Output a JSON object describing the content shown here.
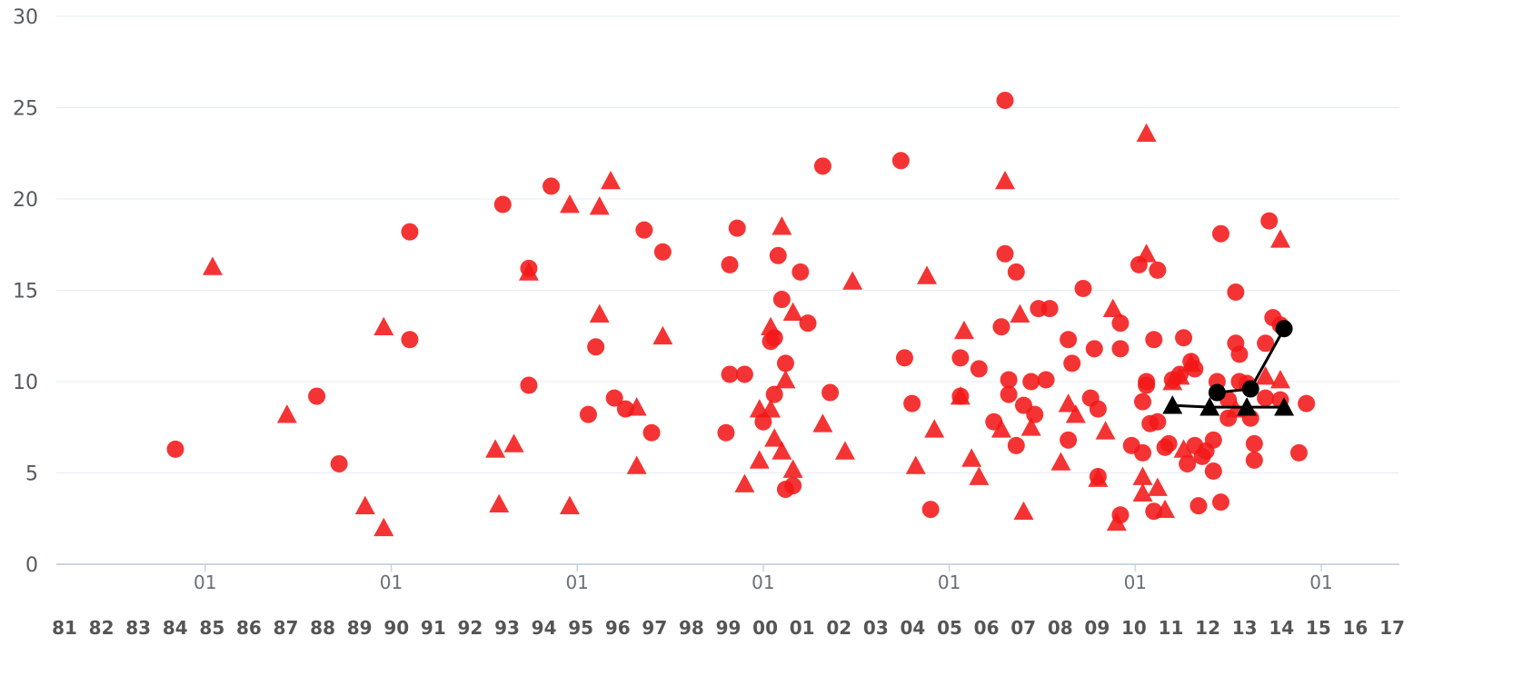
{
  "chart_data": {
    "type": "scatter",
    "ylim": [
      0,
      30
    ],
    "y_ticks": [
      "0",
      "5",
      "10",
      "15",
      "20",
      "25",
      "30"
    ],
    "xlim": [
      1981,
      2017.1
    ],
    "x_minor_ticks": [
      {
        "x": 1985.0,
        "label": "01"
      },
      {
        "x": 1990.0,
        "label": "01"
      },
      {
        "x": 1995.0,
        "label": "01"
      },
      {
        "x": 2000.0,
        "label": "01"
      },
      {
        "x": 2005.0,
        "label": "01"
      },
      {
        "x": 2010.0,
        "label": "01"
      },
      {
        "x": 2015.0,
        "label": "01"
      }
    ],
    "x_year_labels": [
      "81",
      "82",
      "83",
      "84",
      "85",
      "86",
      "87",
      "88",
      "89",
      "90",
      "91",
      "92",
      "93",
      "94",
      "95",
      "96",
      "97",
      "98",
      "99",
      "00",
      "01",
      "02",
      "03",
      "04",
      "05",
      "06",
      "07",
      "08",
      "09",
      "10",
      "11",
      "12",
      "13",
      "14",
      "15",
      "16",
      "17"
    ],
    "grid": true,
    "colors": {
      "red_series": "#f21818",
      "black_series": "#000000",
      "grid": "#e6ecf2",
      "axis": "#c9d6e3"
    },
    "series": [
      {
        "marker": "circle",
        "color": "#f21818",
        "points": [
          [
            1984.2,
            6.3
          ],
          [
            1988.0,
            9.2
          ],
          [
            1988.6,
            5.5
          ],
          [
            1990.5,
            18.2
          ],
          [
            1990.5,
            12.3
          ],
          [
            1993.0,
            19.7
          ],
          [
            1993.7,
            16.2
          ],
          [
            1993.7,
            9.8
          ],
          [
            1994.3,
            20.7
          ],
          [
            1995.3,
            8.2
          ],
          [
            1995.5,
            11.9
          ],
          [
            1996.0,
            9.1
          ],
          [
            1996.3,
            8.5
          ],
          [
            1996.8,
            18.3
          ],
          [
            1997.0,
            7.2
          ],
          [
            1997.3,
            17.1
          ],
          [
            1999.0,
            7.2
          ],
          [
            1999.1,
            16.4
          ],
          [
            1999.1,
            10.4
          ],
          [
            1999.3,
            18.4
          ],
          [
            1999.5,
            10.4
          ],
          [
            2000.0,
            7.8
          ],
          [
            2000.2,
            12.2
          ],
          [
            2000.3,
            12.4
          ],
          [
            2000.3,
            9.3
          ],
          [
            2000.4,
            16.9
          ],
          [
            2000.5,
            14.5
          ],
          [
            2000.6,
            11.0
          ],
          [
            2000.6,
            4.1
          ],
          [
            2000.8,
            4.3
          ],
          [
            2001.0,
            16.0
          ],
          [
            2001.2,
            13.2
          ],
          [
            2001.6,
            21.8
          ],
          [
            2001.8,
            9.4
          ],
          [
            2003.8,
            11.3
          ],
          [
            2003.7,
            22.1
          ],
          [
            2004.0,
            8.8
          ],
          [
            2004.5,
            3.0
          ],
          [
            2005.3,
            11.3
          ],
          [
            2005.3,
            9.2
          ],
          [
            2005.8,
            10.7
          ],
          [
            2006.2,
            7.8
          ],
          [
            2006.4,
            13.0
          ],
          [
            2006.5,
            25.4
          ],
          [
            2006.5,
            17.0
          ],
          [
            2006.6,
            10.1
          ],
          [
            2006.6,
            9.3
          ],
          [
            2006.8,
            16.0
          ],
          [
            2006.8,
            6.5
          ],
          [
            2007.0,
            8.7
          ],
          [
            2007.2,
            10.0
          ],
          [
            2007.3,
            8.2
          ],
          [
            2007.4,
            14.0
          ],
          [
            2007.6,
            10.1
          ],
          [
            2007.7,
            14.0
          ],
          [
            2008.2,
            12.3
          ],
          [
            2008.2,
            6.8
          ],
          [
            2008.3,
            11.0
          ],
          [
            2008.6,
            15.1
          ],
          [
            2008.8,
            9.1
          ],
          [
            2008.9,
            11.8
          ],
          [
            2009.0,
            8.5
          ],
          [
            2009.0,
            4.8
          ],
          [
            2009.6,
            13.2
          ],
          [
            2009.6,
            11.8
          ],
          [
            2009.6,
            2.7
          ],
          [
            2009.9,
            6.5
          ],
          [
            2010.1,
            16.4
          ],
          [
            2010.2,
            8.9
          ],
          [
            2010.2,
            6.1
          ],
          [
            2010.3,
            9.8
          ],
          [
            2010.3,
            10.0
          ],
          [
            2010.4,
            7.7
          ],
          [
            2010.5,
            12.3
          ],
          [
            2010.5,
            2.9
          ],
          [
            2010.6,
            16.1
          ],
          [
            2010.6,
            7.8
          ],
          [
            2010.8,
            6.4
          ],
          [
            2010.9,
            6.6
          ],
          [
            2011.0,
            10.1
          ],
          [
            2011.2,
            10.4
          ],
          [
            2011.3,
            12.4
          ],
          [
            2011.4,
            5.5
          ],
          [
            2011.5,
            11.1
          ],
          [
            2011.6,
            10.7
          ],
          [
            2011.6,
            6.5
          ],
          [
            2011.7,
            3.2
          ],
          [
            2011.8,
            5.9
          ],
          [
            2011.9,
            6.2
          ],
          [
            2012.1,
            6.8
          ],
          [
            2012.1,
            5.1
          ],
          [
            2012.2,
            10.0
          ],
          [
            2012.3,
            18.1
          ],
          [
            2012.3,
            3.4
          ],
          [
            2012.5,
            9.0
          ],
          [
            2012.5,
            8.0
          ],
          [
            2012.7,
            14.9
          ],
          [
            2012.7,
            12.1
          ],
          [
            2012.8,
            11.5
          ],
          [
            2012.8,
            10.0
          ],
          [
            2013.0,
            9.9
          ],
          [
            2013.1,
            8.0
          ],
          [
            2013.2,
            6.6
          ],
          [
            2013.2,
            5.7
          ],
          [
            2013.5,
            12.1
          ],
          [
            2013.5,
            9.1
          ],
          [
            2013.6,
            18.8
          ],
          [
            2013.7,
            13.5
          ],
          [
            2013.9,
            13.1
          ],
          [
            2013.9,
            9.0
          ],
          [
            2014.4,
            6.1
          ],
          [
            2014.6,
            8.8
          ]
        ]
      },
      {
        "marker": "triangle",
        "color": "#f21818",
        "points": [
          [
            1985.2,
            16.3
          ],
          [
            1987.2,
            8.2
          ],
          [
            1989.3,
            3.2
          ],
          [
            1989.8,
            13.0
          ],
          [
            1989.8,
            2.0
          ],
          [
            1992.8,
            6.3
          ],
          [
            1992.9,
            3.3
          ],
          [
            1993.3,
            6.6
          ],
          [
            1993.7,
            16.0
          ],
          [
            1994.8,
            19.7
          ],
          [
            1994.8,
            3.2
          ],
          [
            1995.6,
            19.6
          ],
          [
            1995.6,
            13.7
          ],
          [
            1995.9,
            21.0
          ],
          [
            1996.6,
            8.6
          ],
          [
            1996.6,
            5.4
          ],
          [
            1997.3,
            12.5
          ],
          [
            1999.5,
            4.4
          ],
          [
            1999.9,
            8.5
          ],
          [
            1999.9,
            5.7
          ],
          [
            2000.2,
            13.0
          ],
          [
            2000.2,
            8.5
          ],
          [
            2000.3,
            6.9
          ],
          [
            2000.5,
            18.5
          ],
          [
            2000.5,
            6.2
          ],
          [
            2000.6,
            10.1
          ],
          [
            2000.8,
            13.8
          ],
          [
            2000.8,
            5.2
          ],
          [
            2001.6,
            7.7
          ],
          [
            2002.2,
            6.2
          ],
          [
            2002.4,
            15.5
          ],
          [
            2004.1,
            5.4
          ],
          [
            2004.4,
            15.8
          ],
          [
            2004.6,
            7.4
          ],
          [
            2005.6,
            5.8
          ],
          [
            2005.3,
            9.2
          ],
          [
            2005.4,
            12.8
          ],
          [
            2005.8,
            4.8
          ],
          [
            2006.4,
            7.4
          ],
          [
            2006.5,
            21.0
          ],
          [
            2006.9,
            13.7
          ],
          [
            2007.0,
            2.9
          ],
          [
            2007.2,
            7.5
          ],
          [
            2008.0,
            5.6
          ],
          [
            2008.2,
            8.8
          ],
          [
            2008.4,
            8.2
          ],
          [
            2009.0,
            4.7
          ],
          [
            2009.2,
            7.3
          ],
          [
            2009.4,
            14.0
          ],
          [
            2009.5,
            2.3
          ],
          [
            2010.2,
            3.9
          ],
          [
            2010.2,
            4.8
          ],
          [
            2010.3,
            17.0
          ],
          [
            2010.3,
            23.6
          ],
          [
            2010.6,
            4.2
          ],
          [
            2010.8,
            3.0
          ],
          [
            2011.0,
            10.0
          ],
          [
            2011.2,
            10.3
          ],
          [
            2011.3,
            6.3
          ],
          [
            2011.5,
            11.0
          ],
          [
            2012.7,
            8.5
          ],
          [
            2013.5,
            10.3
          ],
          [
            2013.9,
            10.1
          ],
          [
            2013.9,
            17.8
          ]
        ]
      },
      {
        "marker": "circle",
        "color": "#000000",
        "connected": true,
        "points": [
          [
            2012.2,
            9.4
          ],
          [
            2013.1,
            9.6
          ],
          [
            2014.0,
            12.9
          ]
        ]
      },
      {
        "marker": "triangle",
        "color": "#000000",
        "connected": true,
        "points": [
          [
            2011.0,
            8.7
          ],
          [
            2012.0,
            8.6
          ],
          [
            2013.0,
            8.6
          ],
          [
            2014.0,
            8.6
          ]
        ]
      }
    ]
  }
}
